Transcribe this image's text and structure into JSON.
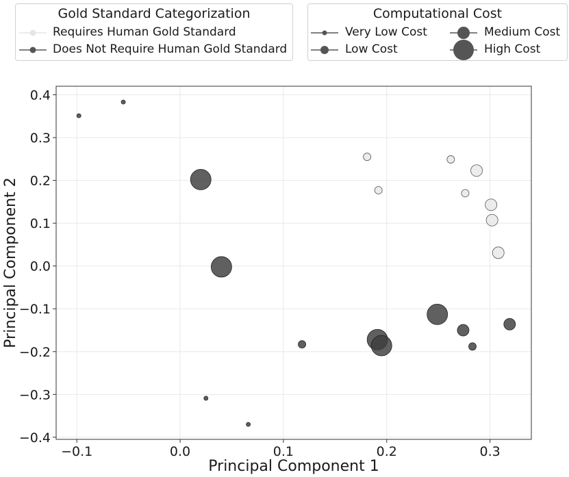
{
  "chart_data": {
    "type": "scatter",
    "xlabel": "Principal Component 1",
    "ylabel": "Principal Component 2",
    "xlim": [
      -0.12,
      0.34
    ],
    "ylim": [
      -0.405,
      0.42
    ],
    "x_ticks": [
      -0.1,
      0.0,
      0.1,
      0.2,
      0.3
    ],
    "x_tick_labels": [
      "−0.1",
      "0.0",
      "0.1",
      "0.2",
      "0.3"
    ],
    "y_ticks": [
      0.4,
      0.3,
      0.2,
      0.1,
      0.0,
      -0.1,
      -0.2,
      -0.3,
      -0.4
    ],
    "y_tick_labels": [
      "0.4",
      "0.3",
      "0.2",
      "0.1",
      "0.0",
      "−0.1",
      "−0.2",
      "−0.3",
      "−0.4"
    ],
    "grid": true,
    "series": [
      {
        "name": "Requires Human Gold Standard",
        "color": "#e6e6e6",
        "points": [
          {
            "x": 0.181,
            "y": 0.255,
            "cost": "Low Cost"
          },
          {
            "x": 0.192,
            "y": 0.177,
            "cost": "Low Cost"
          },
          {
            "x": 0.262,
            "y": 0.249,
            "cost": "Low Cost"
          },
          {
            "x": 0.276,
            "y": 0.17,
            "cost": "Low Cost"
          },
          {
            "x": 0.287,
            "y": 0.223,
            "cost": "Medium Cost"
          },
          {
            "x": 0.301,
            "y": 0.143,
            "cost": "Medium Cost"
          },
          {
            "x": 0.302,
            "y": 0.107,
            "cost": "Medium Cost"
          },
          {
            "x": 0.308,
            "y": 0.031,
            "cost": "Medium Cost"
          }
        ]
      },
      {
        "name": "Does Not Require Human Gold Standard",
        "color": "#3d3d3d",
        "points": [
          {
            "x": -0.098,
            "y": 0.351,
            "cost": "Very Low Cost"
          },
          {
            "x": -0.055,
            "y": 0.383,
            "cost": "Very Low Cost"
          },
          {
            "x": 0.02,
            "y": 0.202,
            "cost": "High Cost"
          },
          {
            "x": 0.04,
            "y": -0.002,
            "cost": "High Cost"
          },
          {
            "x": 0.025,
            "y": -0.309,
            "cost": "Very Low Cost"
          },
          {
            "x": 0.066,
            "y": -0.37,
            "cost": "Very Low Cost"
          },
          {
            "x": 0.118,
            "y": -0.183,
            "cost": "Low Cost"
          },
          {
            "x": 0.191,
            "y": -0.172,
            "cost": "High Cost"
          },
          {
            "x": 0.195,
            "y": -0.186,
            "cost": "High Cost"
          },
          {
            "x": 0.249,
            "y": -0.113,
            "cost": "High Cost"
          },
          {
            "x": 0.274,
            "y": -0.15,
            "cost": "Medium Cost"
          },
          {
            "x": 0.283,
            "y": -0.188,
            "cost": "Low Cost"
          },
          {
            "x": 0.319,
            "y": -0.136,
            "cost": "Medium Cost"
          }
        ]
      }
    ],
    "legends": [
      {
        "title": "Gold Standard Categorization",
        "entries": [
          {
            "label": "Requires Human Gold Standard",
            "color": "#e6e6e6"
          },
          {
            "label": "Does Not Require Human Gold Standard",
            "color": "#3d3d3d"
          }
        ]
      },
      {
        "title": "Computational Cost",
        "entries": [
          {
            "label": "Very Low Cost",
            "size_rank": 1
          },
          {
            "label": "Low Cost",
            "size_rank": 2
          },
          {
            "label": "Medium Cost",
            "size_rank": 3
          },
          {
            "label": "High Cost",
            "size_rank": 4
          }
        ]
      }
    ]
  }
}
